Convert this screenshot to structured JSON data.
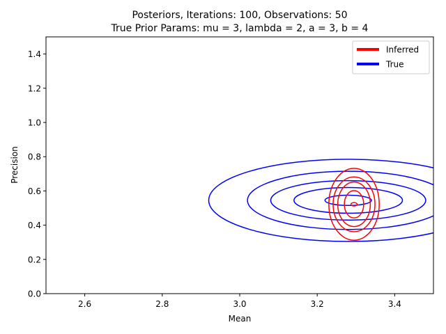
{
  "chart_data": {
    "type": "contour",
    "title_lines": [
      "Posteriors, Iterations: 100, Observations: 50",
      "True Prior Params: mu = 3, lambda = 2, a = 3, b = 4"
    ],
    "xlabel": "Mean",
    "ylabel": "Precision",
    "xlim": [
      2.5,
      3.5
    ],
    "ylim": [
      0.0,
      1.5
    ],
    "xticks": [
      2.6,
      2.8,
      3.0,
      3.2,
      3.4
    ],
    "yticks": [
      0.0,
      0.2,
      0.4,
      0.6,
      0.8,
      1.0,
      1.2,
      1.4
    ],
    "grid": false,
    "legend_position": "top-right",
    "series": [
      {
        "name": "Inferred",
        "color": "#ff0000",
        "center": [
          3.295,
          0.522
        ],
        "contours": [
          {
            "rx": 0.008,
            "ry": 0.01
          },
          {
            "rx": 0.025,
            "ry": 0.08
          },
          {
            "rx": 0.042,
            "ry": 0.13
          },
          {
            "rx": 0.054,
            "ry": 0.16
          },
          {
            "rx": 0.065,
            "ry": 0.21
          }
        ]
      },
      {
        "name": "True",
        "color": "#0000ff",
        "center": [
          3.28,
          0.545
        ],
        "contours": [
          {
            "rx": 0.06,
            "ry": 0.03
          },
          {
            "rx": 0.14,
            "ry": 0.075
          },
          {
            "rx": 0.2,
            "ry": 0.115
          },
          {
            "rx": 0.26,
            "ry": 0.17
          },
          {
            "rx": 0.36,
            "ry": 0.24
          }
        ]
      }
    ]
  }
}
